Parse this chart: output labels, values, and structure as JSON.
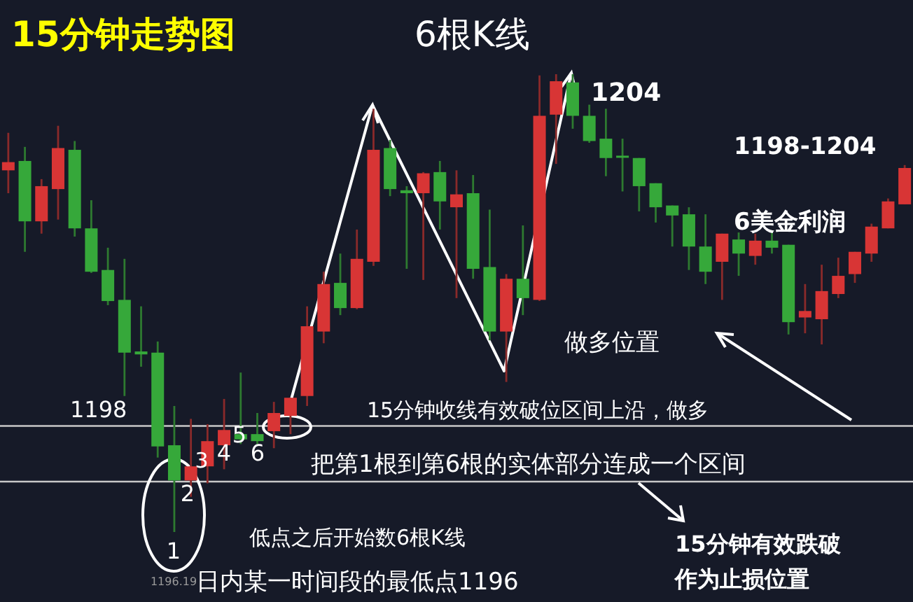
{
  "chart_data": {
    "type": "candlestick",
    "title": "15分钟走势图",
    "subtitle": "6根K线",
    "categories": [
      null,
      null,
      null,
      null,
      null,
      null,
      null,
      null,
      null,
      null,
      null,
      null,
      null,
      null,
      null,
      null,
      null,
      null,
      null,
      null,
      null,
      null,
      null,
      null,
      null,
      null,
      null,
      null,
      null,
      null,
      null,
      null,
      null,
      null,
      null,
      null,
      null,
      null,
      null,
      null,
      null,
      null,
      null,
      null,
      null,
      null,
      null,
      null,
      null,
      null,
      null,
      null,
      null,
      null,
      null
    ],
    "ohlc": [
      [
        1202.36,
        1203.0,
        1201.97,
        1202.5
      ],
      [
        1202.52,
        1202.76,
        1200.97,
        1201.49
      ],
      [
        1201.49,
        1202.21,
        1201.28,
        1202.09
      ],
      [
        1202.04,
        1203.12,
        1201.52,
        1202.74
      ],
      [
        1202.71,
        1202.86,
        1201.23,
        1201.37
      ],
      [
        1201.37,
        1201.85,
        1200.61,
        1200.63
      ],
      [
        1200.66,
        1201.04,
        1200.06,
        1200.13
      ],
      [
        1200.15,
        1200.85,
        1198.51,
        1199.25
      ],
      [
        1199.27,
        1200.04,
        1199.01,
        1199.22
      ],
      [
        1199.25,
        1199.44,
        1197.46,
        1197.65
      ],
      [
        1197.67,
        1198.34,
        1196.19,
        1197.07
      ],
      [
        1197.07,
        1198.12,
        1196.79,
        1197.31
      ],
      [
        1197.31,
        1198.03,
        1197.02,
        1197.74
      ],
      [
        1197.67,
        1198.46,
        1197.26,
        1197.93
      ],
      [
        1197.86,
        1198.91,
        1197.69,
        1197.77
      ],
      [
        1197.86,
        1198.22,
        1197.69,
        1197.74
      ],
      [
        1197.91,
        1198.41,
        1197.62,
        1198.22
      ],
      [
        1198.17,
        1198.48,
        1197.86,
        1198.48
      ],
      [
        1198.51,
        1200.04,
        1198.34,
        1199.7
      ],
      [
        1199.61,
        1200.63,
        1199.41,
        1200.42
      ],
      [
        1200.44,
        1200.94,
        1199.89,
        1200.01
      ],
      [
        1200.01,
        1201.35,
        1199.99,
        1200.85
      ],
      [
        1200.8,
        1203.41,
        1200.73,
        1202.71
      ],
      [
        1202.74,
        1202.88,
        1201.92,
        1202.04
      ],
      [
        1202.02,
        1202.09,
        1200.68,
        1201.97
      ],
      [
        1201.97,
        1202.33,
        1200.49,
        1202.31
      ],
      [
        1202.33,
        1202.52,
        1201.35,
        1201.83
      ],
      [
        1201.73,
        1202.36,
        1200.18,
        1201.95
      ],
      [
        1201.97,
        1202.28,
        1200.51,
        1200.68
      ],
      [
        1200.71,
        1201.69,
        1199.46,
        1199.61
      ],
      [
        1199.61,
        1200.59,
        1198.75,
        1200.51
      ],
      [
        1200.51,
        1201.42,
        1199.89,
        1200.18
      ],
      [
        1200.15,
        1203.98,
        1200.13,
        1203.29
      ],
      [
        1203.31,
        1204.0,
        1202.47,
        1203.88
      ],
      [
        1203.86,
        1204.0,
        1203.07,
        1203.29
      ],
      [
        1203.29,
        1203.48,
        1202.83,
        1202.86
      ],
      [
        1202.9,
        1203.41,
        1202.26,
        1202.57
      ],
      [
        1202.61,
        1202.9,
        1202.0,
        1202.58
      ],
      [
        1202.57,
        1202.57,
        1201.66,
        1202.09
      ],
      [
        1202.14,
        1202.14,
        1201.47,
        1201.73
      ],
      [
        1201.76,
        1201.76,
        1201.06,
        1201.59
      ],
      [
        1201.61,
        1201.73,
        1200.66,
        1201.06
      ],
      [
        1201.06,
        1201.61,
        1200.42,
        1200.63
      ],
      [
        1200.8,
        1201.28,
        1200.15,
        1201.28
      ],
      [
        1201.18,
        1201.3,
        1200.56,
        1200.94
      ],
      [
        1200.9,
        1201.28,
        1200.75,
        1201.16
      ],
      [
        1201.16,
        1201.3,
        1200.94,
        1201.04
      ],
      [
        1201.09,
        1201.09,
        1199.56,
        1199.77
      ],
      [
        1199.85,
        1200.42,
        1199.58,
        1199.96
      ],
      [
        1199.82,
        1200.75,
        1199.39,
        1200.3
      ],
      [
        1200.25,
        1200.87,
        1200.18,
        1200.56
      ],
      [
        1200.59,
        1200.97,
        1200.44,
        1200.97
      ],
      [
        1200.94,
        1201.45,
        1200.8,
        1201.4
      ],
      [
        1201.37,
        1201.88,
        1201.37,
        1201.83
      ],
      [
        1201.78,
        1202.45,
        1201.78,
        1202.4
      ]
    ],
    "ref_lines": [
      {
        "axis": "y",
        "value": 1198.0,
        "label": "1198",
        "color": "#c8c8c8"
      },
      {
        "axis": "y",
        "value": 1197.05,
        "color": "#c8c8c8"
      }
    ],
    "annotations": [
      "1204",
      "1198-1204",
      "6美金利润",
      "做多位置",
      "15分钟收线有效破位区间上沿，做多",
      "把第1根到第6根的实体部分连成一个区间",
      "1",
      "2",
      "3",
      "4",
      "5",
      "6",
      "低点之后开始数6根K线",
      "1196.19",
      "日内某一时间段的最低点1196",
      "15分钟有效跌破",
      "作为止损位置"
    ]
  }
}
